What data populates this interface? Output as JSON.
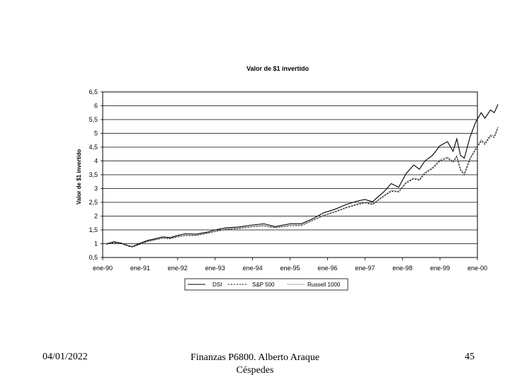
{
  "chart_data": {
    "type": "line",
    "title": "Valor de $1 invertido",
    "ylabel": "Valor de $1 invertido",
    "xlabel": "",
    "ylim": [
      0.5,
      6.5
    ],
    "yticks": [
      "0,5",
      "1",
      "1,5",
      "2",
      "2,5",
      "3",
      "3,5",
      "4",
      "4,5",
      "5",
      "5,5",
      "6",
      "6,5"
    ],
    "x_ticks": [
      "ene-90",
      "ene-91",
      "ene-92",
      "ene-93",
      "ene-94",
      "ene-95",
      "ene-96",
      "ene-97",
      "ene-98",
      "ene-99",
      "ene-00"
    ],
    "grid": "horizontal",
    "legend_position": "bottom",
    "series": [
      {
        "name": "DSI",
        "style": "solid",
        "points": [
          [
            0.1,
            1.0
          ],
          [
            0.3,
            1.07
          ],
          [
            0.5,
            1.02
          ],
          [
            0.7,
            0.92
          ],
          [
            0.8,
            0.9
          ],
          [
            1.0,
            1.02
          ],
          [
            1.2,
            1.12
          ],
          [
            1.4,
            1.18
          ],
          [
            1.6,
            1.25
          ],
          [
            1.8,
            1.22
          ],
          [
            2.0,
            1.3
          ],
          [
            2.2,
            1.36
          ],
          [
            2.5,
            1.35
          ],
          [
            2.8,
            1.42
          ],
          [
            3.0,
            1.5
          ],
          [
            3.3,
            1.58
          ],
          [
            3.6,
            1.6
          ],
          [
            4.0,
            1.68
          ],
          [
            4.3,
            1.72
          ],
          [
            4.6,
            1.62
          ],
          [
            5.0,
            1.72
          ],
          [
            5.3,
            1.72
          ],
          [
            5.6,
            1.9
          ],
          [
            5.9,
            2.12
          ],
          [
            6.2,
            2.25
          ],
          [
            6.5,
            2.42
          ],
          [
            6.8,
            2.55
          ],
          [
            7.0,
            2.6
          ],
          [
            7.2,
            2.52
          ],
          [
            7.5,
            2.88
          ],
          [
            7.7,
            3.18
          ],
          [
            7.9,
            3.05
          ],
          [
            8.1,
            3.55
          ],
          [
            8.3,
            3.85
          ],
          [
            8.45,
            3.7
          ],
          [
            8.6,
            4.0
          ],
          [
            8.8,
            4.2
          ],
          [
            9.0,
            4.55
          ],
          [
            9.2,
            4.7
          ],
          [
            9.35,
            4.35
          ],
          [
            9.45,
            4.8
          ],
          [
            9.55,
            4.2
          ],
          [
            9.65,
            4.1
          ],
          [
            9.8,
            4.85
          ],
          [
            9.95,
            5.4
          ],
          [
            10.1,
            5.75
          ],
          [
            10.2,
            5.55
          ],
          [
            10.35,
            5.85
          ],
          [
            10.45,
            5.75
          ],
          [
            10.55,
            6.05
          ]
        ]
      },
      {
        "name": "S&P 500",
        "style": "dashed",
        "points": [
          [
            0.1,
            0.98
          ],
          [
            0.3,
            1.04
          ],
          [
            0.5,
            1.0
          ],
          [
            0.7,
            0.9
          ],
          [
            0.8,
            0.88
          ],
          [
            1.0,
            0.98
          ],
          [
            1.2,
            1.08
          ],
          [
            1.4,
            1.14
          ],
          [
            1.6,
            1.2
          ],
          [
            1.8,
            1.18
          ],
          [
            2.0,
            1.25
          ],
          [
            2.2,
            1.3
          ],
          [
            2.5,
            1.3
          ],
          [
            2.8,
            1.38
          ],
          [
            3.0,
            1.44
          ],
          [
            3.3,
            1.52
          ],
          [
            3.6,
            1.55
          ],
          [
            4.0,
            1.62
          ],
          [
            4.3,
            1.65
          ],
          [
            4.6,
            1.58
          ],
          [
            5.0,
            1.65
          ],
          [
            5.3,
            1.66
          ],
          [
            5.6,
            1.84
          ],
          [
            5.9,
            2.02
          ],
          [
            6.2,
            2.15
          ],
          [
            6.5,
            2.3
          ],
          [
            6.8,
            2.42
          ],
          [
            7.0,
            2.48
          ],
          [
            7.2,
            2.42
          ],
          [
            7.5,
            2.72
          ],
          [
            7.7,
            2.9
          ],
          [
            7.9,
            2.88
          ],
          [
            8.1,
            3.2
          ],
          [
            8.3,
            3.35
          ],
          [
            8.45,
            3.3
          ],
          [
            8.6,
            3.55
          ],
          [
            8.8,
            3.72
          ],
          [
            9.0,
            4.0
          ],
          [
            9.2,
            4.1
          ],
          [
            9.35,
            3.95
          ],
          [
            9.45,
            4.15
          ],
          [
            9.55,
            3.65
          ],
          [
            9.65,
            3.5
          ],
          [
            9.8,
            4.05
          ],
          [
            9.95,
            4.4
          ],
          [
            10.1,
            4.72
          ],
          [
            10.2,
            4.6
          ],
          [
            10.35,
            4.9
          ],
          [
            10.45,
            4.85
          ],
          [
            10.55,
            5.2
          ]
        ]
      },
      {
        "name": "Russell 1000",
        "style": "thin",
        "points": [
          [
            0.1,
            0.99
          ],
          [
            0.3,
            1.05
          ],
          [
            0.5,
            1.01
          ],
          [
            0.7,
            0.91
          ],
          [
            0.8,
            0.89
          ],
          [
            1.0,
            0.99
          ],
          [
            1.2,
            1.09
          ],
          [
            1.4,
            1.15
          ],
          [
            1.6,
            1.21
          ],
          [
            1.8,
            1.19
          ],
          [
            2.0,
            1.26
          ],
          [
            2.2,
            1.31
          ],
          [
            2.5,
            1.31
          ],
          [
            2.8,
            1.39
          ],
          [
            3.0,
            1.45
          ],
          [
            3.3,
            1.53
          ],
          [
            3.6,
            1.56
          ],
          [
            4.0,
            1.63
          ],
          [
            4.3,
            1.66
          ],
          [
            4.6,
            1.59
          ],
          [
            5.0,
            1.66
          ],
          [
            5.3,
            1.67
          ],
          [
            5.6,
            1.85
          ],
          [
            5.9,
            2.03
          ],
          [
            6.2,
            2.17
          ],
          [
            6.5,
            2.32
          ],
          [
            6.8,
            2.44
          ],
          [
            7.0,
            2.5
          ],
          [
            7.2,
            2.44
          ],
          [
            7.5,
            2.74
          ],
          [
            7.7,
            2.93
          ],
          [
            7.9,
            2.9
          ],
          [
            8.1,
            3.23
          ],
          [
            8.3,
            3.38
          ],
          [
            8.45,
            3.33
          ],
          [
            8.6,
            3.58
          ],
          [
            8.8,
            3.76
          ],
          [
            9.0,
            4.04
          ],
          [
            9.2,
            4.14
          ],
          [
            9.35,
            3.99
          ],
          [
            9.45,
            4.19
          ],
          [
            9.55,
            3.7
          ],
          [
            9.65,
            3.55
          ],
          [
            9.8,
            4.1
          ],
          [
            9.95,
            4.45
          ],
          [
            10.1,
            4.77
          ],
          [
            10.2,
            4.65
          ],
          [
            10.35,
            4.95
          ],
          [
            10.45,
            4.9
          ],
          [
            10.55,
            5.25
          ]
        ]
      }
    ]
  },
  "footer": {
    "date": "04/01/2022",
    "line1": "Finanzas P6800. Alberto Araque",
    "line2": "Céspedes",
    "page": "45"
  }
}
